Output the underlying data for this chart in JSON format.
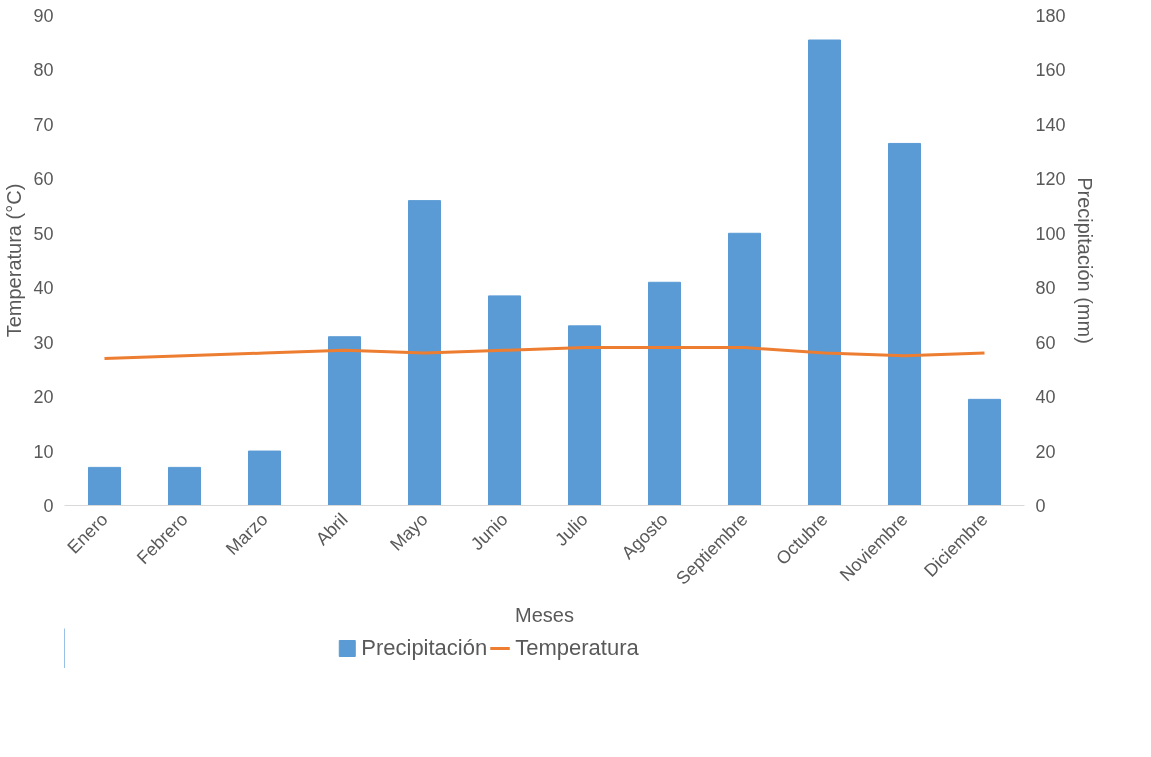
{
  "chart_data": {
    "type": "bar",
    "xlabel": "Meses",
    "ylabel": "Temperatura (°C)",
    "y2label": "Precipitación (mm)",
    "categories": [
      "Enero",
      "Febrero",
      "Marzo",
      "Abril",
      "Mayo",
      "Junio",
      "Julio",
      "Agosto",
      "Septiembre",
      "Octubre",
      "Noviembre",
      "Diciembre"
    ],
    "series": [
      {
        "name": "Precipitación",
        "axis": "y2",
        "color": "#5b9bd5",
        "values": [
          14,
          14,
          20,
          62,
          112,
          77,
          66,
          82,
          100,
          171,
          133,
          39
        ]
      },
      {
        "name": "Temperatura",
        "type": "line",
        "axis": "y",
        "color": "#ed7d31",
        "values": [
          27,
          27.5,
          28,
          28.5,
          28,
          28.5,
          29,
          29,
          29,
          28,
          27.5,
          28
        ]
      }
    ],
    "ylim": [
      0,
      90
    ],
    "yticks": [
      0,
      10,
      20,
      30,
      40,
      50,
      60,
      70,
      80,
      90
    ],
    "y2lim": [
      0,
      180
    ],
    "y2ticks": [
      0,
      20,
      40,
      60,
      80,
      100,
      120,
      140,
      160,
      180
    ],
    "grid": false,
    "legend": "bottom"
  }
}
